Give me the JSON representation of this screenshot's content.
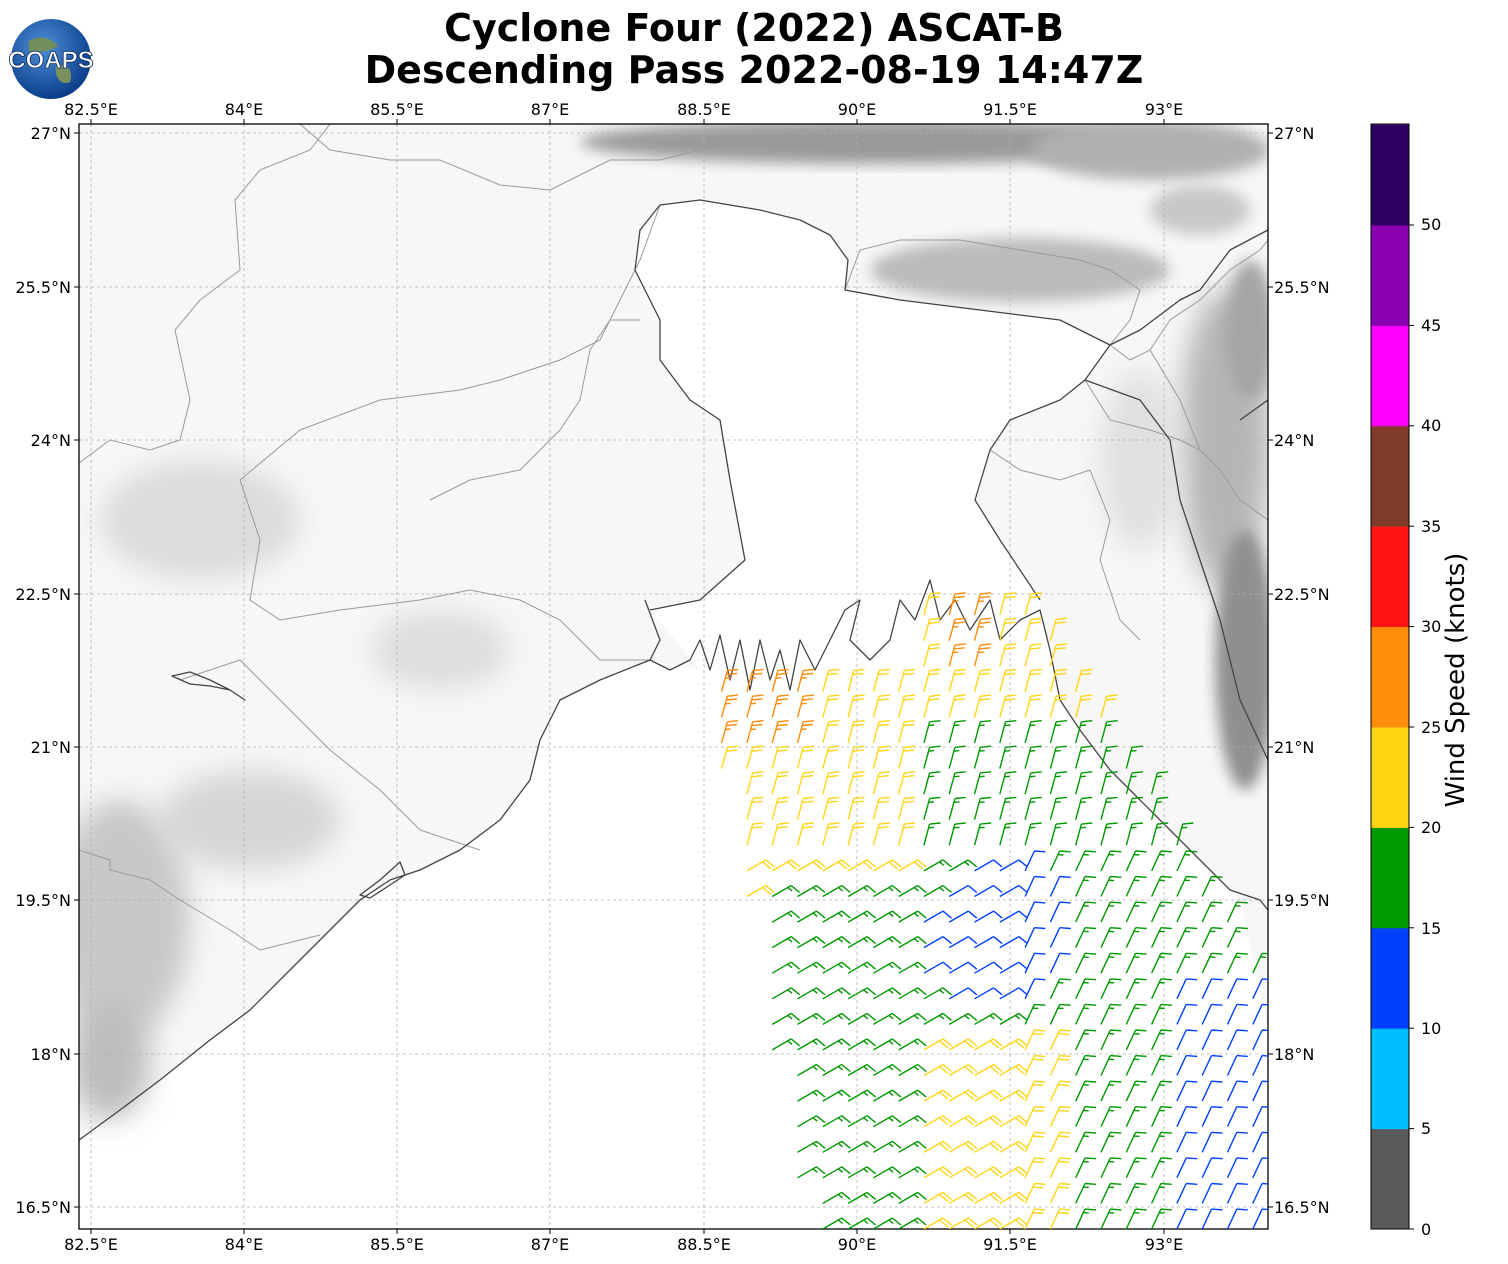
{
  "title": {
    "line1": "Cyclone Four (2022) ASCAT-B",
    "line2": "Descending Pass 2022-08-19 14:47Z"
  },
  "logo": {
    "text": "COAPS",
    "icon": "globe-icon"
  },
  "map": {
    "lon_range": [
      82.3,
      94.05
    ],
    "lat_range": [
      16.3,
      27.1
    ],
    "gridlines": true,
    "lon_ticks": [
      "82.5°E",
      "84°E",
      "85.5°E",
      "87°E",
      "88.5°E",
      "90°E",
      "91.5°E",
      "93°E"
    ],
    "lat_ticks": [
      "27°N",
      "25.5°N",
      "24°N",
      "22.5°N",
      "21°N",
      "19.5°N",
      "18°N",
      "16.5°N"
    ]
  },
  "colorbar": {
    "label": "Wind Speed (knots)",
    "ticks": [
      "0",
      "5",
      "10",
      "15",
      "20",
      "25",
      "30",
      "35",
      "40",
      "45",
      "50"
    ],
    "bins": [
      {
        "from": 0,
        "to": 5,
        "color": "#595959"
      },
      {
        "from": 5,
        "to": 10,
        "color": "#00bfff"
      },
      {
        "from": 10,
        "to": 15,
        "color": "#0040ff"
      },
      {
        "from": 15,
        "to": 20,
        "color": "#009900"
      },
      {
        "from": 20,
        "to": 25,
        "color": "#ffd514"
      },
      {
        "from": 25,
        "to": 30,
        "color": "#ff8c0a"
      },
      {
        "from": 30,
        "to": 35,
        "color": "#ff1414"
      },
      {
        "from": 35,
        "to": 40,
        "color": "#803c28"
      },
      {
        "from": 40,
        "to": 45,
        "color": "#ff00ff"
      },
      {
        "from": 45,
        "to": 50,
        "color": "#8c00b4"
      },
      {
        "from": 50,
        "to": 55,
        "color": "#2d0060"
      }
    ]
  },
  "wind_barbs": {
    "units": "knots",
    "coverage": "descending swath, Bay of Bengal",
    "approx_field": [
      {
        "region": "north edge near coast (21.2-21.8N, 88.5-89.5E)",
        "speed": "25-32 kt"
      },
      {
        "region": "central swath (19-21N, 89-91E)",
        "speed": "20-25 kt"
      },
      {
        "region": "east swath (18-21N, 90.5-92.5E)",
        "speed": "15-20 kt"
      },
      {
        "region": "core near 19.5N 91.5E",
        "speed": "10-15 kt"
      },
      {
        "region": "south (16.3-18N, 90.5-92E)",
        "speed": "20-25 kt"
      },
      {
        "region": "southeast (16.3-18.5N, 93-94E)",
        "speed": "10-15 kt"
      }
    ]
  }
}
